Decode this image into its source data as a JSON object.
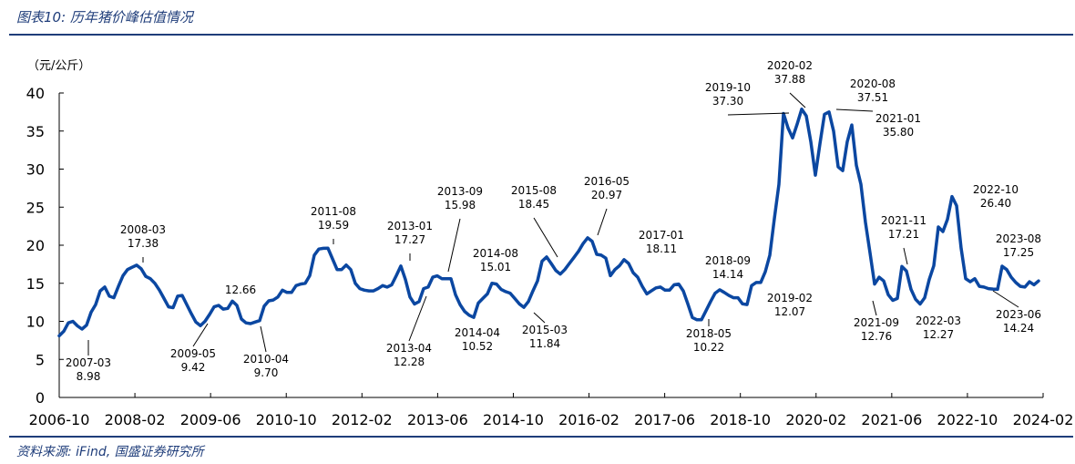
{
  "header": {
    "title": "图表10:  历年猪价峰估值情况"
  },
  "footer": {
    "source": "资料来源:  iFind,  国盛证券研究所"
  },
  "colors": {
    "line": "#0b47a1",
    "rule": "#1f3d7a"
  },
  "chart_data": {
    "type": "line",
    "title": "",
    "ylabel": "（元/公斤）",
    "xlabel": "",
    "ylim": [
      0,
      40
    ],
    "yticks": [
      0,
      5,
      10,
      15,
      20,
      25,
      30,
      35,
      40
    ],
    "xticks": [
      "2006-10",
      "2008-02",
      "2009-06",
      "2010-10",
      "2012-02",
      "2013-06",
      "2014-10",
      "2016-02",
      "2017-06",
      "2018-10",
      "2020-02",
      "2021-06",
      "2022-10",
      "2024-02"
    ],
    "x_start": "2006-10",
    "x_end": "2024-02",
    "grid": false,
    "legend": "none",
    "series": [
      {
        "values": [
          8.1,
          8.7,
          9.8,
          10.0,
          9.4,
          8.98,
          9.5,
          11.2,
          12.2,
          14.0,
          14.5,
          13.3,
          13.1,
          14.6,
          16.0,
          16.8,
          17.1,
          17.38,
          16.9,
          15.9,
          15.6,
          15.0,
          14.1,
          13.0,
          11.9,
          11.8,
          13.3,
          13.4,
          12.2,
          11.0,
          9.9,
          9.42,
          10.0,
          10.9,
          11.9,
          12.1,
          11.6,
          11.7,
          12.66,
          12.1,
          10.3,
          9.8,
          9.7,
          9.9,
          10.1,
          12.0,
          12.7,
          12.8,
          13.2,
          14.1,
          13.8,
          13.8,
          14.7,
          14.9,
          15.0,
          16.0,
          18.7,
          19.5,
          19.59,
          19.6,
          18.2,
          16.8,
          16.8,
          17.4,
          16.8,
          15.0,
          14.3,
          14.1,
          14.0,
          14.0,
          14.3,
          14.7,
          14.5,
          14.8,
          16.0,
          17.27,
          15.5,
          13.2,
          12.28,
          12.6,
          14.3,
          14.5,
          15.8,
          15.98,
          15.6,
          15.6,
          15.6,
          13.5,
          12.2,
          11.3,
          10.8,
          10.52,
          12.4,
          13.0,
          13.6,
          15.01,
          14.9,
          14.2,
          13.9,
          13.7,
          13.0,
          12.3,
          11.84,
          12.6,
          14.0,
          15.3,
          17.9,
          18.45,
          17.6,
          16.7,
          16.2,
          16.8,
          17.6,
          18.4,
          19.2,
          20.2,
          20.97,
          20.5,
          18.8,
          18.7,
          18.3,
          16.0,
          16.8,
          17.3,
          18.11,
          17.6,
          16.4,
          15.8,
          14.6,
          13.6,
          14.0,
          14.4,
          14.5,
          14.1,
          14.1,
          14.8,
          14.9,
          14.0,
          12.3,
          10.5,
          10.2,
          10.22,
          11.4,
          12.6,
          13.7,
          14.14,
          13.8,
          13.4,
          13.1,
          13.1,
          12.3,
          12.2,
          14.7,
          15.1,
          15.1,
          16.5,
          18.7,
          23.5,
          28.0,
          37.3,
          35.4,
          34.1,
          35.9,
          37.88,
          37.0,
          33.6,
          29.2,
          33.3,
          37.2,
          37.51,
          35.0,
          30.3,
          29.8,
          33.6,
          35.8,
          30.5,
          28.0,
          23.0,
          19.0,
          14.9,
          15.8,
          15.3,
          13.5,
          12.76,
          13.0,
          17.21,
          16.6,
          14.2,
          12.9,
          12.27,
          13.1,
          15.5,
          17.3,
          22.4,
          21.8,
          23.4,
          26.4,
          25.2,
          19.6,
          15.6,
          15.2,
          15.6,
          14.6,
          14.5,
          14.3,
          14.24,
          14.2,
          17.25,
          16.8,
          15.8,
          15.1,
          14.6,
          14.5,
          15.2,
          14.8,
          15.3
        ]
      }
    ],
    "annotations": [
      {
        "date": "2007-03",
        "value": "8.98",
        "label": "2007-03"
      },
      {
        "date": "2008-03",
        "value": "17.38",
        "label": "2008-03"
      },
      {
        "date": "2009-05",
        "value": "9.42",
        "label": "2009-05"
      },
      {
        "date": "2010-02",
        "value": "12.66",
        "label": ""
      },
      {
        "date": "2010-04",
        "value": "9.70",
        "label": "2010-04"
      },
      {
        "date": "2011-08",
        "value": "19.59",
        "label": "2011-08"
      },
      {
        "date": "2013-01",
        "value": "17.27",
        "label": "2013-01"
      },
      {
        "date": "2013-04",
        "value": "12.28",
        "label": "2013-04"
      },
      {
        "date": "2013-09",
        "value": "15.98",
        "label": "2013-09"
      },
      {
        "date": "2014-04",
        "value": "10.52",
        "label": "2014-04"
      },
      {
        "date": "2014-08",
        "value": "15.01",
        "label": "2014-08"
      },
      {
        "date": "2015-03",
        "value": "11.84",
        "label": "2015-03"
      },
      {
        "date": "2015-08",
        "value": "18.45",
        "label": "2015-08"
      },
      {
        "date": "2016-05",
        "value": "20.97",
        "label": "2016-05"
      },
      {
        "date": "2017-01",
        "value": "18.11",
        "label": "2017-01"
      },
      {
        "date": "2018-05",
        "value": "10.22",
        "label": "2018-05"
      },
      {
        "date": "2018-09",
        "value": "14.14",
        "label": "2018-09"
      },
      {
        "date": "2019-02",
        "value": "12.07",
        "label": "2019-02"
      },
      {
        "date": "2019-10",
        "value": "37.30",
        "label": "2019-10"
      },
      {
        "date": "2020-02",
        "value": "37.88",
        "label": "2020-02"
      },
      {
        "date": "2020-08",
        "value": "37.51",
        "label": "2020-08"
      },
      {
        "date": "2021-01",
        "value": "35.80",
        "label": "2021-01"
      },
      {
        "date": "2021-09",
        "value": "12.76",
        "label": "2021-09"
      },
      {
        "date": "2021-11",
        "value": "17.21",
        "label": "2021-11"
      },
      {
        "date": "2022-03",
        "value": "12.27",
        "label": "2022-03"
      },
      {
        "date": "2022-10",
        "value": "26.40",
        "label": "2022-10"
      },
      {
        "date": "2023-06",
        "value": "14.24",
        "label": "2023-06"
      },
      {
        "date": "2023-08",
        "value": "17.25",
        "label": "2023-08"
      }
    ]
  }
}
